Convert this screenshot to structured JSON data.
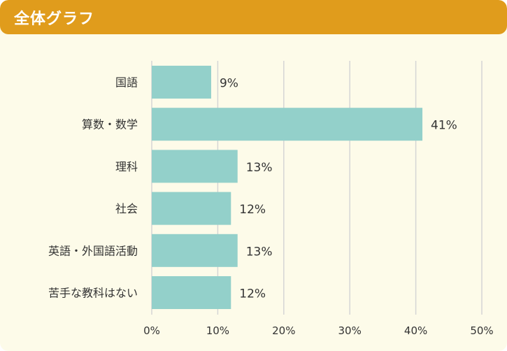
{
  "header": {
    "title": "全体グラフ"
  },
  "colors": {
    "header_bg": "#e09c1c",
    "card_bg": "#fdfbe9",
    "bar": "#93d0ca",
    "grid": "#d5d5d5",
    "text": "#333333"
  },
  "chart_data": {
    "type": "bar",
    "orientation": "horizontal",
    "categories": [
      "国語",
      "算数・数学",
      "理科",
      "社会",
      "英語・外国語活動",
      "苦手な教科はない"
    ],
    "values": [
      9,
      41,
      13,
      12,
      13,
      12
    ],
    "data_labels": [
      "9%",
      "41%",
      "13%",
      "12%",
      "13%",
      "12%"
    ],
    "xlim": [
      0,
      50
    ],
    "xticks": [
      0,
      10,
      20,
      30,
      40,
      50
    ],
    "xtick_labels": [
      "0%",
      "10%",
      "20%",
      "30%",
      "40%",
      "50%"
    ],
    "grid": true
  }
}
